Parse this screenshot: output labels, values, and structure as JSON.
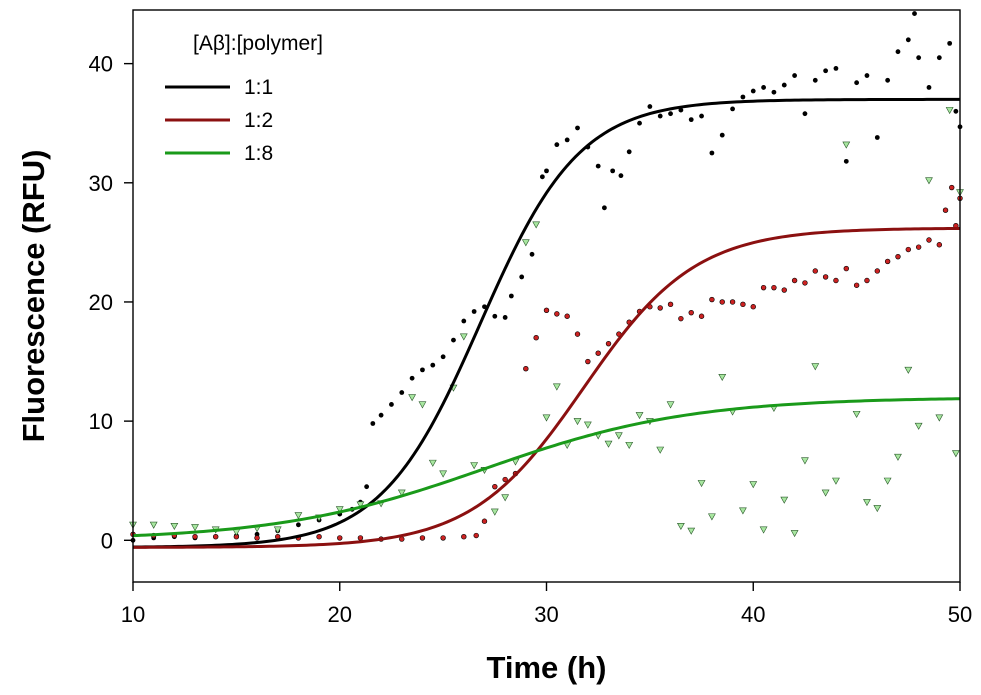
{
  "chart_data": {
    "type": "scatter",
    "title": "",
    "xlabel": "Time (h)",
    "ylabel": "Fluorescence (RFU)",
    "xlim": [
      10,
      50
    ],
    "ylim": [
      -3.5,
      44.5
    ],
    "xticks": [
      10,
      20,
      30,
      40,
      50
    ],
    "yticks": [
      0,
      10,
      20,
      30,
      40
    ],
    "grid": false,
    "legend_title": "[Aβ]:[polymer]",
    "legend_position": "top-left",
    "series": [
      {
        "name": "1:1",
        "color": "#000000",
        "marker": "circle",
        "marker_color": "#000000",
        "fit": {
          "A1": -0.6,
          "A2": 37.0,
          "x0": 26.8,
          "dx": 2.4
        },
        "points": [
          [
            10,
            0.0
          ],
          [
            11,
            0.2
          ],
          [
            12,
            0.3
          ],
          [
            13,
            0.2
          ],
          [
            14,
            0.3
          ],
          [
            15,
            0.4
          ],
          [
            16,
            0.5
          ],
          [
            17,
            0.8
          ],
          [
            18,
            1.3
          ],
          [
            19,
            1.7
          ],
          [
            20,
            2.2
          ],
          [
            20.6,
            2.6
          ],
          [
            21,
            3.2
          ],
          [
            21.3,
            4.5
          ],
          [
            21.6,
            9.8
          ],
          [
            22,
            10.5
          ],
          [
            22.5,
            11.4
          ],
          [
            23,
            12.4
          ],
          [
            23.5,
            13.6
          ],
          [
            24,
            14.3
          ],
          [
            24.5,
            14.7
          ],
          [
            25,
            15.4
          ],
          [
            25.5,
            16.8
          ],
          [
            26,
            18.4
          ],
          [
            26.5,
            19.2
          ],
          [
            27,
            19.6
          ],
          [
            27.5,
            18.8
          ],
          [
            28,
            18.7
          ],
          [
            28.3,
            20.5
          ],
          [
            28.8,
            22.1
          ],
          [
            29.3,
            24.0
          ],
          [
            29.8,
            30.5
          ],
          [
            30,
            31.0
          ],
          [
            30.5,
            33.2
          ],
          [
            31,
            33.6
          ],
          [
            31.5,
            34.6
          ],
          [
            32,
            33.0
          ],
          [
            32.5,
            31.4
          ],
          [
            32.8,
            27.9
          ],
          [
            33.2,
            31.0
          ],
          [
            33.6,
            30.6
          ],
          [
            34,
            32.6
          ],
          [
            34.5,
            35.0
          ],
          [
            35,
            36.4
          ],
          [
            35.5,
            35.6
          ],
          [
            36,
            35.8
          ],
          [
            36.5,
            36.1
          ],
          [
            37,
            35.3
          ],
          [
            37.5,
            35.6
          ],
          [
            38,
            32.5
          ],
          [
            38.5,
            34.0
          ],
          [
            39,
            36.2
          ],
          [
            39.5,
            37.2
          ],
          [
            40,
            37.7
          ],
          [
            40.5,
            38.0
          ],
          [
            41,
            37.6
          ],
          [
            41.5,
            38.2
          ],
          [
            42,
            39.0
          ],
          [
            42.5,
            35.8
          ],
          [
            43,
            38.6
          ],
          [
            43.5,
            39.4
          ],
          [
            44,
            39.6
          ],
          [
            44.5,
            31.8
          ],
          [
            45,
            38.4
          ],
          [
            45.5,
            39.0
          ],
          [
            46,
            33.8
          ],
          [
            46.5,
            38.6
          ],
          [
            47,
            41.0
          ],
          [
            47.5,
            42.0
          ],
          [
            47.8,
            44.2
          ],
          [
            48,
            40.5
          ],
          [
            48.5,
            38.0
          ],
          [
            49,
            40.5
          ],
          [
            49.5,
            41.7
          ],
          [
            49.8,
            36.0
          ],
          [
            50,
            34.7
          ]
        ]
      },
      {
        "name": "1:2",
        "color": "#8B1010",
        "marker": "circle",
        "marker_color": "#cc2222",
        "fit": {
          "A1": -0.6,
          "A2": 26.2,
          "x0": 31.8,
          "dx": 2.7
        },
        "points": [
          [
            10,
            0.5
          ],
          [
            11,
            0.4
          ],
          [
            12,
            0.4
          ],
          [
            13,
            0.3
          ],
          [
            14,
            0.3
          ],
          [
            15,
            0.3
          ],
          [
            16,
            0.2
          ],
          [
            17,
            0.3
          ],
          [
            18,
            0.2
          ],
          [
            19,
            0.3
          ],
          [
            20,
            0.2
          ],
          [
            21,
            0.2
          ],
          [
            22,
            0.1
          ],
          [
            23,
            0.1
          ],
          [
            24,
            0.2
          ],
          [
            25,
            0.2
          ],
          [
            26,
            0.3
          ],
          [
            26.6,
            0.4
          ],
          [
            27,
            1.6
          ],
          [
            27.5,
            4.5
          ],
          [
            28,
            5.1
          ],
          [
            28.5,
            5.6
          ],
          [
            29,
            14.4
          ],
          [
            29.5,
            17.0
          ],
          [
            30,
            19.3
          ],
          [
            30.5,
            19.0
          ],
          [
            31,
            18.8
          ],
          [
            31.5,
            17.3
          ],
          [
            32,
            15.0
          ],
          [
            32.5,
            15.7
          ],
          [
            33,
            16.5
          ],
          [
            33.5,
            17.3
          ],
          [
            34,
            18.3
          ],
          [
            34.5,
            19.2
          ],
          [
            35,
            19.6
          ],
          [
            35.5,
            19.5
          ],
          [
            36,
            19.8
          ],
          [
            36.5,
            18.6
          ],
          [
            37,
            19.1
          ],
          [
            37.5,
            18.8
          ],
          [
            38,
            20.2
          ],
          [
            38.5,
            20.0
          ],
          [
            39,
            20.0
          ],
          [
            39.5,
            19.8
          ],
          [
            40,
            19.6
          ],
          [
            40.5,
            21.2
          ],
          [
            41,
            21.2
          ],
          [
            41.5,
            21.0
          ],
          [
            42,
            21.8
          ],
          [
            42.5,
            21.6
          ],
          [
            43,
            22.6
          ],
          [
            43.5,
            22.1
          ],
          [
            44,
            21.8
          ],
          [
            44.5,
            22.8
          ],
          [
            45,
            21.4
          ],
          [
            45.5,
            21.8
          ],
          [
            46,
            22.6
          ],
          [
            46.5,
            23.4
          ],
          [
            47,
            23.8
          ],
          [
            47.5,
            24.4
          ],
          [
            48,
            24.6
          ],
          [
            48.5,
            25.2
          ],
          [
            49,
            24.8
          ],
          [
            49.3,
            27.7
          ],
          [
            49.6,
            29.6
          ],
          [
            49.8,
            26.4
          ],
          [
            50,
            28.7
          ]
        ]
      },
      {
        "name": "1:8",
        "color": "#1a9a1a",
        "marker": "triangle-down",
        "marker_color": "#a8e6a0",
        "fit": {
          "A1": 0.0,
          "A2": 12.0,
          "x0": 27.0,
          "dx": 5.0
        },
        "points": [
          [
            10,
            1.3
          ],
          [
            11,
            1.3
          ],
          [
            12,
            1.2
          ],
          [
            13,
            1.1
          ],
          [
            14,
            0.9
          ],
          [
            15,
            0.7
          ],
          [
            16,
            1.0
          ],
          [
            17,
            0.9
          ],
          [
            18,
            2.1
          ],
          [
            19,
            1.9
          ],
          [
            20,
            2.6
          ],
          [
            21,
            3.0
          ],
          [
            22,
            3.1
          ],
          [
            23,
            4.0
          ],
          [
            23.5,
            12.0
          ],
          [
            24,
            11.4
          ],
          [
            24.5,
            6.5
          ],
          [
            25,
            5.6
          ],
          [
            25.5,
            12.8
          ],
          [
            26,
            17.1
          ],
          [
            26.5,
            6.3
          ],
          [
            27,
            5.9
          ],
          [
            27.5,
            2.4
          ],
          [
            28,
            3.6
          ],
          [
            28.5,
            6.6
          ],
          [
            29,
            25.0
          ],
          [
            29.5,
            26.5
          ],
          [
            30,
            10.3
          ],
          [
            30.5,
            12.9
          ],
          [
            31,
            8.0
          ],
          [
            31.5,
            10.0
          ],
          [
            32,
            9.7
          ],
          [
            32.5,
            8.8
          ],
          [
            33,
            8.1
          ],
          [
            33.5,
            8.8
          ],
          [
            34,
            8.0
          ],
          [
            34.5,
            10.5
          ],
          [
            35,
            10.0
          ],
          [
            35.5,
            7.6
          ],
          [
            36,
            11.4
          ],
          [
            36.5,
            1.2
          ],
          [
            37,
            0.8
          ],
          [
            37.5,
            4.8
          ],
          [
            38,
            2.0
          ],
          [
            38.5,
            13.7
          ],
          [
            39,
            10.8
          ],
          [
            39.5,
            2.5
          ],
          [
            40,
            4.7
          ],
          [
            40.5,
            0.9
          ],
          [
            41,
            11.1
          ],
          [
            41.5,
            3.4
          ],
          [
            42,
            0.6
          ],
          [
            42.5,
            6.7
          ],
          [
            43,
            14.6
          ],
          [
            43.5,
            4.0
          ],
          [
            44,
            5.0
          ],
          [
            44.5,
            33.2
          ],
          [
            45,
            10.6
          ],
          [
            45.5,
            3.2
          ],
          [
            46,
            2.7
          ],
          [
            46.5,
            5.0
          ],
          [
            47,
            7.0
          ],
          [
            47.5,
            14.3
          ],
          [
            48,
            9.6
          ],
          [
            48.5,
            30.2
          ],
          [
            49,
            10.3
          ],
          [
            49.5,
            36.1
          ],
          [
            49.8,
            7.3
          ],
          [
            50,
            29.2
          ]
        ]
      }
    ]
  }
}
